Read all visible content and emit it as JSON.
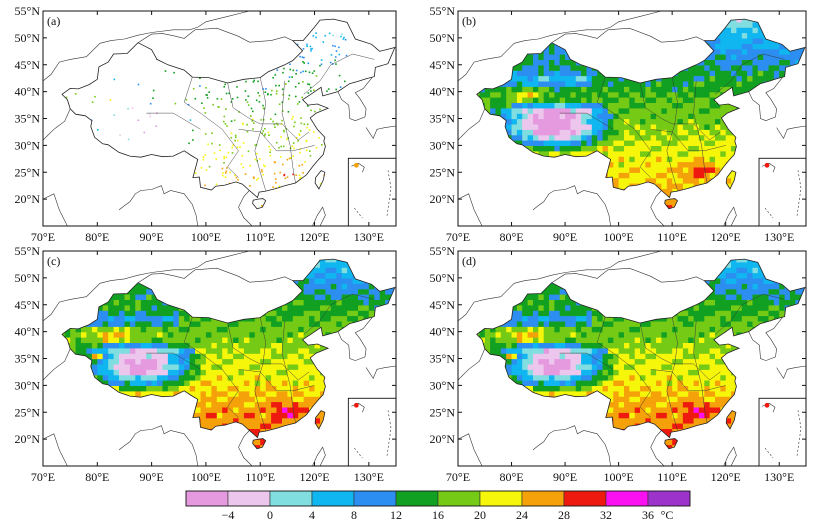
{
  "panels": [
    {
      "label": "(a)",
      "kind": "stations"
    },
    {
      "label": "(b)",
      "kind": "field"
    },
    {
      "label": "(c)",
      "kind": "field"
    },
    {
      "label": "(d)",
      "kind": "field"
    }
  ],
  "lat_ticks": [
    "55°N",
    "50°N",
    "45°N",
    "40°N",
    "35°N",
    "30°N",
    "25°N",
    "20°N"
  ],
  "lon_ticks": [
    "70°E",
    "80°E",
    "90°E",
    "100°E",
    "110°E",
    "120°E",
    "130°E"
  ],
  "colorbar": {
    "colors": [
      "#e59ae0",
      "#ecc6ec",
      "#80dde0",
      "#0fb6f0",
      "#2c8ef0",
      "#11a021",
      "#74ca14",
      "#f6f60a",
      "#f5a10a",
      "#ee1a10",
      "#fa10f0",
      "#9c34cc"
    ],
    "tick_labels": [
      "−4",
      "0",
      "4",
      "8",
      "12",
      "16",
      "20",
      "24",
      "28",
      "32",
      "36"
    ],
    "unit": "°C"
  }
}
